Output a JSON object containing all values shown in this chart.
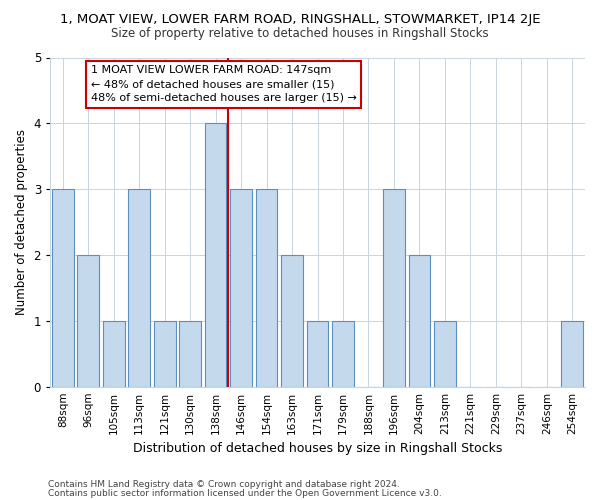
{
  "title1": "1, MOAT VIEW, LOWER FARM ROAD, RINGSHALL, STOWMARKET, IP14 2JE",
  "title2": "Size of property relative to detached houses in Ringshall Stocks",
  "xlabel": "Distribution of detached houses by size in Ringshall Stocks",
  "ylabel": "Number of detached properties",
  "categories": [
    "88sqm",
    "96sqm",
    "105sqm",
    "113sqm",
    "121sqm",
    "130sqm",
    "138sqm",
    "146sqm",
    "154sqm",
    "163sqm",
    "171sqm",
    "179sqm",
    "188sqm",
    "196sqm",
    "204sqm",
    "213sqm",
    "221sqm",
    "229sqm",
    "237sqm",
    "246sqm",
    "254sqm"
  ],
  "values": [
    3,
    2,
    1,
    3,
    1,
    1,
    4,
    3,
    3,
    2,
    1,
    1,
    0,
    3,
    2,
    1,
    0,
    0,
    0,
    0,
    1
  ],
  "bar_color": "#c5d9ed",
  "bar_edge_color": "#5a8fc0",
  "highlight_line_index": 7,
  "highlight_line_color": "#cc0000",
  "ylim": [
    0,
    5
  ],
  "yticks": [
    0,
    1,
    2,
    3,
    4,
    5
  ],
  "annotation_text": "1 MOAT VIEW LOWER FARM ROAD: 147sqm\n← 48% of detached houses are smaller (15)\n48% of semi-detached houses are larger (15) →",
  "annotation_box_color": "#ffffff",
  "annotation_box_edge": "#cc0000",
  "footer1": "Contains HM Land Registry data © Crown copyright and database right 2024.",
  "footer2": "Contains public sector information licensed under the Open Government Licence v3.0.",
  "bg_color": "#ffffff",
  "plot_bg_color": "#ffffff",
  "grid_color": "#c8d4df"
}
